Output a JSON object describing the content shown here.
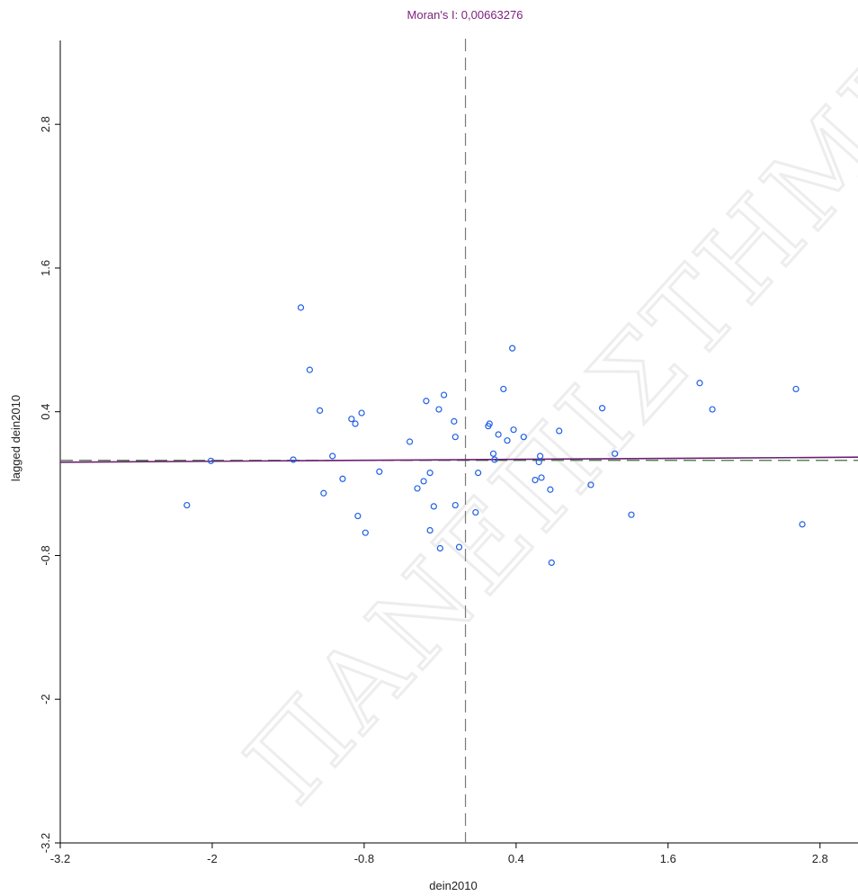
{
  "chart_data": {
    "type": "scatter",
    "title": "Moran's I: 0,00663276",
    "xlabel": "dein2010",
    "ylabel": "lagged dein2010",
    "xlim": [
      -3.2,
      3.1
    ],
    "ylim": [
      -3.2,
      3.5
    ],
    "xticks": [
      {
        "value": -3.2,
        "label": "-3.2"
      },
      {
        "value": -2,
        "label": "-2"
      },
      {
        "value": -0.8,
        "label": "-0.8"
      },
      {
        "value": 0.4,
        "label": "0.4"
      },
      {
        "value": 1.6,
        "label": "1.6"
      },
      {
        "value": 2.8,
        "label": "2.8"
      }
    ],
    "yticks": [
      {
        "value": -3.2,
        "label": "-3.2"
      },
      {
        "value": -2,
        "label": "-2"
      },
      {
        "value": -0.8,
        "label": "-0.8"
      },
      {
        "value": 0.4,
        "label": "0.4"
      },
      {
        "value": 1.6,
        "label": "1.6"
      },
      {
        "value": 2.8,
        "label": "2.8"
      }
    ],
    "mean_lines": {
      "x": 0.0,
      "y": -0.006
    },
    "regression_line": {
      "intercept": 0.0,
      "slope": 0.00663276
    },
    "points": [
      [
        -1.3,
        1.27
      ],
      [
        -1.23,
        0.75
      ],
      [
        -1.15,
        0.41
      ],
      [
        -0.9,
        0.34
      ],
      [
        -0.82,
        0.39
      ],
      [
        -0.87,
        0.3
      ],
      [
        -0.44,
        0.15
      ],
      [
        -0.31,
        0.49
      ],
      [
        -0.21,
        0.42
      ],
      [
        -0.17,
        0.54
      ],
      [
        -0.09,
        0.32
      ],
      [
        0.18,
        0.28
      ],
      [
        0.19,
        0.3
      ],
      [
        -0.08,
        0.19
      ],
      [
        0.3,
        0.59
      ],
      [
        0.38,
        0.25
      ],
      [
        0.46,
        0.19
      ],
      [
        0.26,
        0.21
      ],
      [
        0.33,
        0.16
      ],
      [
        0.37,
        0.93
      ],
      [
        1.08,
        0.43
      ],
      [
        1.85,
        0.64
      ],
      [
        1.95,
        0.42
      ],
      [
        2.61,
        0.59
      ],
      [
        0.74,
        0.24
      ],
      [
        1.18,
        0.05
      ],
      [
        -2.2,
        -0.38
      ],
      [
        -2.01,
        -0.01
      ],
      [
        -1.36,
        0.0
      ],
      [
        -1.05,
        0.03
      ],
      [
        -0.97,
        -0.16
      ],
      [
        -0.68,
        -0.1
      ],
      [
        -1.12,
        -0.28
      ],
      [
        -0.85,
        -0.47
      ],
      [
        -0.79,
        -0.61
      ],
      [
        -0.38,
        -0.24
      ],
      [
        -0.33,
        -0.18
      ],
      [
        -0.28,
        -0.11
      ],
      [
        -0.25,
        -0.39
      ],
      [
        -0.2,
        -0.74
      ],
      [
        -0.28,
        -0.59
      ],
      [
        -0.05,
        -0.73
      ],
      [
        -0.08,
        -0.38
      ],
      [
        0.08,
        -0.44
      ],
      [
        0.1,
        -0.11
      ],
      [
        0.22,
        0.05
      ],
      [
        0.23,
        0.0
      ],
      [
        0.58,
        -0.02
      ],
      [
        0.59,
        0.03
      ],
      [
        0.55,
        -0.17
      ],
      [
        0.6,
        -0.15
      ],
      [
        0.67,
        -0.25
      ],
      [
        0.68,
        -0.86
      ],
      [
        0.99,
        -0.21
      ],
      [
        1.31,
        -0.46
      ],
      [
        2.66,
        -0.54
      ]
    ]
  },
  "watermark": "ΠΑΝΕΠΙΣΤΗΜΙΟ ΠΕΙΡΑΙΩΣ",
  "colors": {
    "title": "#7b1f7b",
    "points": "#1f5fe6",
    "regression": "#6e1f73",
    "mean_x": "#7a7a7a",
    "mean_y": "#3f6f3f",
    "axis": "#000000"
  }
}
